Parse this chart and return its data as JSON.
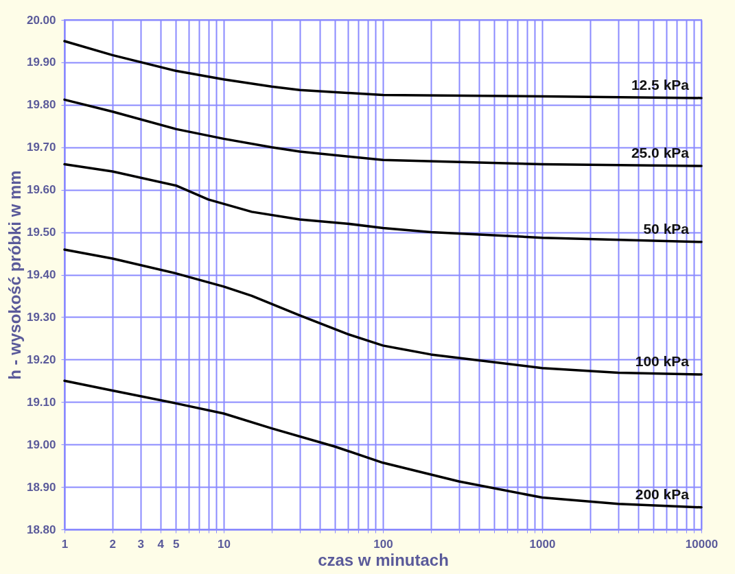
{
  "chart_data": {
    "type": "line",
    "xlabel": "czas w minutach",
    "ylabel": "h - wysokość próbki w mm",
    "log": "x",
    "grid": true,
    "xlim": [
      1,
      10000
    ],
    "ylim": [
      18.8,
      20.0
    ],
    "xticks": [
      1,
      2,
      3,
      4,
      5,
      {
        "value": 6,
        "label": null
      },
      {
        "value": 7,
        "label": null
      },
      {
        "value": 8,
        "label": null
      },
      {
        "value": 9,
        "label": null
      },
      10,
      {
        "value": 20,
        "label": null
      },
      {
        "value": 30,
        "label": null
      },
      {
        "value": 40,
        "label": null
      },
      {
        "value": 50,
        "label": null
      },
      {
        "value": 60,
        "label": null
      },
      {
        "value": 70,
        "label": null
      },
      {
        "value": 80,
        "label": null
      },
      {
        "value": 90,
        "label": null
      },
      100,
      {
        "value": 200,
        "label": null
      },
      {
        "value": 300,
        "label": null
      },
      {
        "value": 400,
        "label": null
      },
      {
        "value": 500,
        "label": null
      },
      {
        "value": 600,
        "label": null
      },
      {
        "value": 700,
        "label": null
      },
      {
        "value": 800,
        "label": null
      },
      {
        "value": 900,
        "label": null
      },
      1000,
      {
        "value": 2000,
        "label": null
      },
      {
        "value": 3000,
        "label": null
      },
      {
        "value": 4000,
        "label": null
      },
      {
        "value": 5000,
        "label": null
      },
      {
        "value": 6000,
        "label": null
      },
      {
        "value": 7000,
        "label": null
      },
      {
        "value": 8000,
        "label": null
      },
      {
        "value": 9000,
        "label": null
      },
      10000
    ],
    "yticks": [
      {
        "value": 18.8,
        "label": "18.80"
      },
      {
        "value": 18.9,
        "label": "18.90"
      },
      {
        "value": 19.0,
        "label": "19.00"
      },
      {
        "value": 19.1,
        "label": "19.10"
      },
      {
        "value": 19.2,
        "label": "19.20"
      },
      {
        "value": 19.3,
        "label": "19.30"
      },
      {
        "value": 19.4,
        "label": "19.40"
      },
      {
        "value": 19.5,
        "label": "19.50"
      },
      {
        "value": 19.6,
        "label": "19.60"
      },
      {
        "value": 19.7,
        "label": "19.70"
      },
      {
        "value": 19.8,
        "label": "19.80"
      },
      {
        "value": 19.9,
        "label": "19.90"
      },
      {
        "value": 20.0,
        "label": "20.00"
      }
    ],
    "series": [
      {
        "name": "12.5 kPa",
        "color": "#000000",
        "x": [
          1,
          2,
          5,
          10,
          20,
          30,
          100,
          1000,
          10000
        ],
        "values": [
          19.95,
          19.917,
          19.88,
          19.86,
          19.843,
          19.835,
          19.823,
          19.82,
          19.816
        ]
      },
      {
        "name": "25.0 kPa",
        "color": "#000000",
        "x": [
          1,
          2,
          5,
          10,
          20,
          30,
          100,
          1000,
          10000
        ],
        "values": [
          19.812,
          19.784,
          19.743,
          19.72,
          19.7,
          19.69,
          19.67,
          19.66,
          19.656
        ]
      },
      {
        "name": "50 kPa",
        "color": "#000000",
        "x": [
          1,
          2,
          5,
          8,
          15,
          30,
          60,
          100,
          200,
          1000,
          10000
        ],
        "values": [
          19.66,
          19.643,
          19.61,
          19.577,
          19.548,
          19.53,
          19.52,
          19.51,
          19.5,
          19.487,
          19.477
        ]
      },
      {
        "name": "100 kPa",
        "color": "#000000",
        "x": [
          1,
          2,
          5,
          10,
          15,
          30,
          60,
          100,
          200,
          1000,
          3000,
          10000
        ],
        "values": [
          19.459,
          19.438,
          19.403,
          19.372,
          19.35,
          19.304,
          19.26,
          19.233,
          19.212,
          19.18,
          19.169,
          19.165
        ]
      },
      {
        "name": "200 kPa",
        "color": "#000000",
        "x": [
          1,
          2,
          5,
          10,
          20,
          50,
          100,
          300,
          1000,
          3000,
          10000
        ],
        "values": [
          19.15,
          19.127,
          19.097,
          19.073,
          19.038,
          18.995,
          18.957,
          18.913,
          18.875,
          18.86,
          18.852
        ]
      }
    ]
  }
}
